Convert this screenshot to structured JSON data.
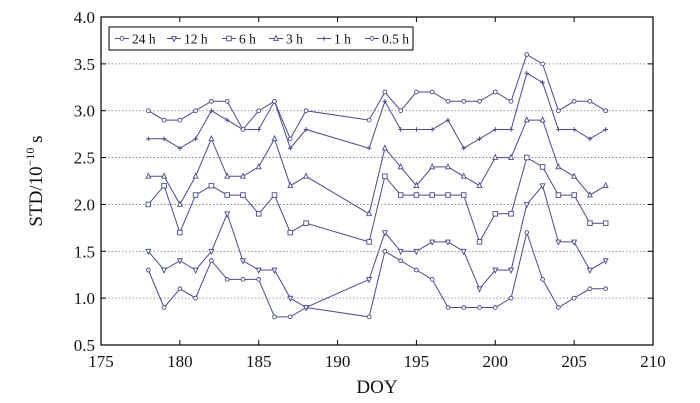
{
  "chart_data": {
    "type": "line",
    "title": "",
    "xlabel": "DOY",
    "ylabel": "STD/10",
    "ylabel_exponent": "−10",
    "ylabel_unit": " s",
    "xlim": [
      175,
      210
    ],
    "ylim": [
      0.5,
      4.0
    ],
    "x_ticks": [
      175,
      180,
      185,
      190,
      195,
      200,
      205,
      210
    ],
    "y_ticks": [
      0.5,
      1.0,
      1.5,
      2.0,
      2.5,
      3.0,
      3.5,
      4.0
    ],
    "x_tick_labels": [
      "175",
      "180",
      "185",
      "190",
      "195",
      "200",
      "205",
      "210"
    ],
    "y_tick_labels": [
      "0.5",
      "1.0",
      "1.5",
      "2.0",
      "2.5",
      "3.0",
      "3.5",
      "4.0"
    ],
    "grid": "horizontal dotted",
    "legend_position": "top-left",
    "line_color": "#4a4a8c",
    "x": [
      178,
      179,
      180,
      181,
      182,
      183,
      184,
      185,
      186,
      187,
      188,
      192,
      193,
      194,
      195,
      196,
      197,
      198,
      199,
      200,
      201,
      202,
      203,
      204,
      205,
      206,
      207
    ],
    "series": [
      {
        "name": "24 h",
        "marker": "dot",
        "values": [
          1.3,
          0.9,
          1.1,
          1.0,
          1.4,
          1.2,
          1.2,
          1.2,
          0.8,
          0.8,
          0.9,
          0.8,
          1.5,
          1.4,
          1.3,
          1.2,
          0.9,
          0.9,
          0.9,
          0.9,
          1.0,
          1.7,
          1.2,
          0.9,
          1.0,
          1.1,
          1.1
        ]
      },
      {
        "name": "12 h",
        "marker": "triangle-down",
        "values": [
          1.5,
          1.3,
          1.4,
          1.3,
          1.5,
          1.9,
          1.4,
          1.3,
          1.3,
          1.0,
          0.9,
          1.2,
          1.7,
          1.5,
          1.5,
          1.6,
          1.6,
          1.5,
          1.1,
          1.3,
          1.3,
          2.0,
          2.2,
          1.6,
          1.6,
          1.3,
          1.4
        ]
      },
      {
        "name": "6 h",
        "marker": "square",
        "values": [
          2.0,
          2.2,
          1.7,
          2.1,
          2.2,
          2.1,
          2.1,
          1.9,
          2.1,
          1.7,
          1.8,
          1.6,
          2.3,
          2.1,
          2.1,
          2.1,
          2.1,
          2.1,
          1.6,
          1.9,
          1.9,
          2.5,
          2.4,
          2.1,
          2.1,
          1.8,
          1.8
        ]
      },
      {
        "name": "3 h",
        "marker": "triangle-up",
        "values": [
          2.3,
          2.3,
          2.0,
          2.3,
          2.7,
          2.3,
          2.3,
          2.4,
          2.7,
          2.2,
          2.3,
          1.9,
          2.6,
          2.4,
          2.2,
          2.4,
          2.4,
          2.3,
          2.2,
          2.5,
          2.5,
          2.9,
          2.9,
          2.4,
          2.3,
          2.1,
          2.2
        ]
      },
      {
        "name": "1 h",
        "marker": "plus",
        "values": [
          2.7,
          2.7,
          2.6,
          2.7,
          3.0,
          2.9,
          2.8,
          2.8,
          3.1,
          2.6,
          2.8,
          2.6,
          3.1,
          2.8,
          2.8,
          2.8,
          2.9,
          2.6,
          2.7,
          2.8,
          2.8,
          3.4,
          3.3,
          2.8,
          2.8,
          2.7,
          2.8
        ]
      },
      {
        "name": "0.5 h",
        "marker": "dot",
        "values": [
          3.0,
          2.9,
          2.9,
          3.0,
          3.1,
          3.1,
          2.8,
          3.0,
          3.1,
          2.7,
          3.0,
          2.9,
          3.2,
          3.0,
          3.2,
          3.2,
          3.1,
          3.1,
          3.1,
          3.2,
          3.1,
          3.6,
          3.5,
          3.0,
          3.1,
          3.1,
          3.0
        ]
      }
    ]
  }
}
